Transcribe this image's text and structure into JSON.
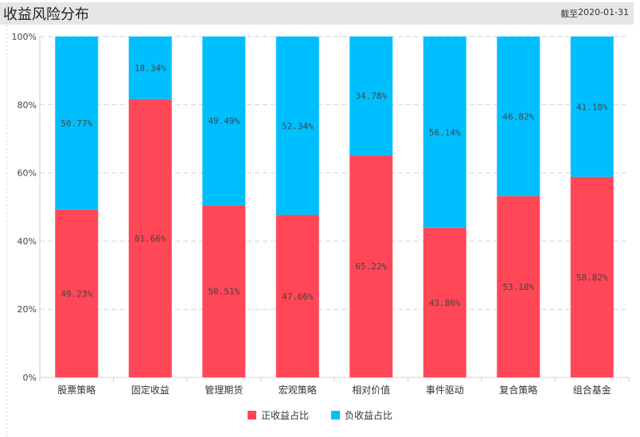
{
  "header": {
    "title": "收益风险分布",
    "date_prefix": "截至",
    "date": "2020-01-31"
  },
  "colors": {
    "positive": "#ff4757",
    "negative": "#00bfff"
  },
  "chart_data": {
    "type": "bar",
    "stacked": true,
    "title": "收益风险分布",
    "categories": [
      "股票策略",
      "固定收益",
      "管理期货",
      "宏观策略",
      "相对价值",
      "事件驱动",
      "复合策略",
      "组合基金"
    ],
    "series": [
      {
        "name": "正收益占比",
        "values": [
          49.23,
          81.66,
          50.51,
          47.66,
          65.22,
          43.86,
          53.18,
          58.82
        ],
        "labels": [
          "49.23%",
          "81.66%",
          "50.51%",
          "47.66%",
          "65.22%",
          "43.86%",
          "53.18%",
          "58.82%"
        ]
      },
      {
        "name": "负收益占比",
        "values": [
          50.77,
          18.34,
          49.49,
          52.34,
          34.78,
          56.14,
          46.82,
          41.18
        ],
        "labels": [
          "50.77%",
          "18.34%",
          "49.49%",
          "52.34%",
          "34.78%",
          "56.14%",
          "46.82%",
          "41.18%"
        ]
      }
    ],
    "yticks": [
      "0%",
      "20%",
      "40%",
      "60%",
      "80%",
      "100%"
    ],
    "ylim": [
      0,
      100
    ],
    "grid": true,
    "legend": "bottom-center"
  }
}
